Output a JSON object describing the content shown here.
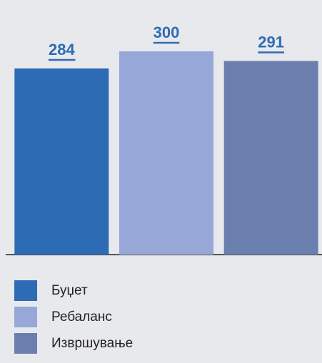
{
  "chart_data": {
    "type": "bar",
    "series": [
      {
        "name": "Буџет",
        "color": "#2e6bb5",
        "values": [
          284
        ]
      },
      {
        "name": "Ребаланс",
        "color": "#97a8d8",
        "values": [
          300
        ]
      },
      {
        "name": "Извршување",
        "color": "#6b7fae",
        "values": [
          291
        ]
      }
    ],
    "ylim": [
      110,
      340
    ]
  }
}
